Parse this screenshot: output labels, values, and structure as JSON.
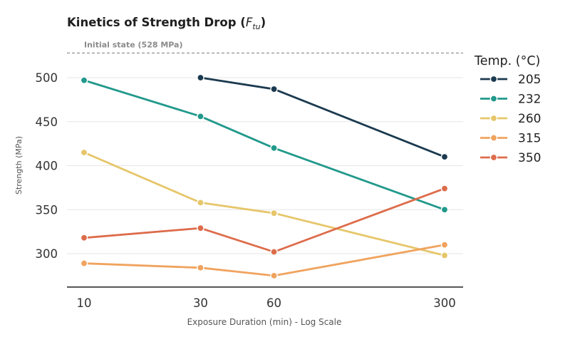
{
  "chart_data": {
    "type": "line",
    "title_main": "Kinetics of Strength Drop (",
    "title_symbol": "F",
    "title_subscript": "tu",
    "title_close": ")",
    "xlabel": "Exposure Duration (min) - Log Scale",
    "ylabel": "Strength (MPa)",
    "x_scale": "log",
    "x": [
      10,
      30,
      60,
      300
    ],
    "x_tick_labels": [
      "10",
      "30",
      "60",
      "300"
    ],
    "y_ticks": [
      300,
      350,
      400,
      450,
      500
    ],
    "y_tick_labels": [
      "300",
      "350",
      "400",
      "450",
      "500"
    ],
    "ylim": [
      262,
      540
    ],
    "grid": true,
    "reference_line": {
      "value": 528,
      "label": "Initial state (528 MPa)"
    },
    "legend": {
      "title": "Temp. (°C)",
      "placement": "right"
    },
    "series": [
      {
        "name": "205",
        "color": "#1b3a4f",
        "points": [
          [
            30,
            500
          ],
          [
            60,
            487
          ],
          [
            300,
            410
          ]
        ]
      },
      {
        "name": "232",
        "color": "#21998b",
        "points": [
          [
            10,
            497
          ],
          [
            30,
            456
          ],
          [
            60,
            420
          ],
          [
            300,
            350
          ]
        ]
      },
      {
        "name": "260",
        "color": "#e6c66a",
        "points": [
          [
            10,
            415
          ],
          [
            30,
            358
          ],
          [
            60,
            346
          ],
          [
            300,
            298
          ]
        ]
      },
      {
        "name": "315",
        "color": "#f0a35e",
        "points": [
          [
            10,
            289
          ],
          [
            30,
            284
          ],
          [
            60,
            275
          ],
          [
            300,
            310
          ]
        ]
      },
      {
        "name": "350",
        "color": "#dd6c4b",
        "points": [
          [
            10,
            318
          ],
          [
            30,
            329
          ],
          [
            60,
            302
          ],
          [
            300,
            374
          ]
        ]
      }
    ]
  }
}
